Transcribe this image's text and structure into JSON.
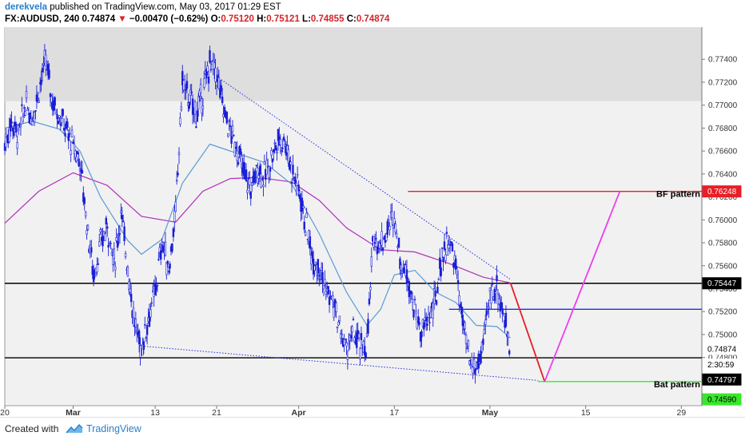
{
  "header": {
    "author": "derekvela",
    "published_text": "published on TradingView.com, May 03, 2017 01:29 EST",
    "symbol": "FX:AUDUSD, 240",
    "last": "0.74874",
    "change": "−0.00470 (−0.62%)",
    "o_label": "O:",
    "o_value": "0.75120",
    "h_label": "H:",
    "h_value": "0.75121",
    "l_label": "L:",
    "l_value": "0.74855",
    "c_label": "C:",
    "c_value": "0.74874"
  },
  "footer": {
    "created_with": "Created with",
    "brand": "TradingView"
  },
  "colors": {
    "candle": "#1a1fd6",
    "ma_fast": "#5b9bd5",
    "ma_slow": "#b02fb8",
    "red": "#e81e26",
    "magenta": "#ee3dee",
    "green": "#39e62e",
    "blue_line": "#1f2de0",
    "supply_zone": "#dedede"
  },
  "chart_data": {
    "type": "candlestick",
    "xlim": [
      0,
      102
    ],
    "ylim": [
      0.7438,
      0.7768
    ],
    "x_ticks": [
      {
        "x": 0,
        "label": "20"
      },
      {
        "x": 10,
        "label": "Mar"
      },
      {
        "x": 22,
        "label": "13"
      },
      {
        "x": 31,
        "label": "21"
      },
      {
        "x": 43,
        "label": "Apr"
      },
      {
        "x": 57,
        "label": "17"
      },
      {
        "x": 71,
        "label": "May"
      },
      {
        "x": 85,
        "label": "15"
      },
      {
        "x": 99,
        "label": "29"
      }
    ],
    "y_ticks": [
      "0.74600",
      "0.74800",
      "0.75000",
      "0.75200",
      "0.75400",
      "0.75600",
      "0.75800",
      "0.76000",
      "0.76200",
      "0.76400",
      "0.76600",
      "0.76800",
      "0.77000",
      "0.77200",
      "0.77400"
    ],
    "axis_labels": [
      {
        "text": "0.76248",
        "y": 0.76248,
        "bg": "#e81e26",
        "fg": "#ffffff"
      },
      {
        "text": "0.75447",
        "y": 0.75447,
        "bg": "#000000",
        "fg": "#ffffff"
      },
      {
        "text": "0.74874",
        "y": 0.74874,
        "bg": "#ffffff",
        "fg": "#000000"
      },
      {
        "text": "2:30:59",
        "y": 0.74738,
        "bg": "#ffffff",
        "fg": "#000000"
      },
      {
        "text": "0.74797",
        "y": 0.74608,
        "bg": "#000000",
        "fg": "#ffffff"
      },
      {
        "text": "0.74590",
        "y": 0.74435,
        "bg": "#39e62e",
        "fg": "#000000"
      }
    ],
    "supply_zone": [
      0.77035,
      0.7768
    ],
    "candles": [
      [
        0,
        0.7666
      ],
      [
        1,
        0.7686
      ],
      [
        2,
        0.7673
      ],
      [
        3,
        0.7701
      ],
      [
        4,
        0.7689
      ],
      [
        5,
        0.7715
      ],
      [
        6,
        0.7738
      ],
      [
        7,
        0.7703
      ],
      [
        8,
        0.7692
      ],
      [
        9,
        0.7678
      ],
      [
        10,
        0.7664
      ],
      [
        11,
        0.7652
      ],
      [
        12,
        0.7598
      ],
      [
        13,
        0.7552
      ],
      [
        14,
        0.7578
      ],
      [
        15,
        0.7595
      ],
      [
        16,
        0.7562
      ],
      [
        17,
        0.7606
      ],
      [
        18,
        0.7559
      ],
      [
        19,
        0.7508
      ],
      [
        20,
        0.7488
      ],
      [
        21,
        0.7515
      ],
      [
        22,
        0.7536
      ],
      [
        23,
        0.7581
      ],
      [
        24,
        0.7557
      ],
      [
        25,
        0.7606
      ],
      [
        26,
        0.7721
      ],
      [
        27,
        0.7705
      ],
      [
        28,
        0.7692
      ],
      [
        29,
        0.771
      ],
      [
        30,
        0.7737
      ],
      [
        31,
        0.7726
      ],
      [
        32,
        0.7697
      ],
      [
        33,
        0.7677
      ],
      [
        34,
        0.7662
      ],
      [
        35,
        0.764
      ],
      [
        36,
        0.7627
      ],
      [
        37,
        0.7646
      ],
      [
        38,
        0.7637
      ],
      [
        39,
        0.7654
      ],
      [
        40,
        0.7669
      ],
      [
        41,
        0.767
      ],
      [
        42,
        0.7643
      ],
      [
        43,
        0.7629
      ],
      [
        44,
        0.7597
      ],
      [
        45,
        0.7568
      ],
      [
        46,
        0.7561
      ],
      [
        47,
        0.7538
      ],
      [
        48,
        0.7528
      ],
      [
        49,
        0.7505
      ],
      [
        50,
        0.7486
      ],
      [
        51,
        0.7502
      ],
      [
        52,
        0.7488
      ],
      [
        53,
        0.7492
      ],
      [
        54,
        0.7588
      ],
      [
        55,
        0.7578
      ],
      [
        56,
        0.7592
      ],
      [
        57,
        0.7604
      ],
      [
        58,
        0.7561
      ],
      [
        59,
        0.7552
      ],
      [
        60,
        0.752
      ],
      [
        61,
        0.7501
      ],
      [
        62,
        0.7514
      ],
      [
        63,
        0.7528
      ],
      [
        64,
        0.757
      ],
      [
        65,
        0.7582
      ],
      [
        66,
        0.7559
      ],
      [
        67,
        0.751
      ],
      [
        68,
        0.7475
      ],
      [
        69,
        0.7469
      ],
      [
        70,
        0.749
      ],
      [
        71,
        0.7535
      ],
      [
        72,
        0.7542
      ],
      [
        73,
        0.7516
      ],
      [
        74,
        0.7487
      ]
    ],
    "ma_fast": [
      [
        0,
        0.768
      ],
      [
        4,
        0.7686
      ],
      [
        8,
        0.7679
      ],
      [
        11,
        0.766
      ],
      [
        14,
        0.762
      ],
      [
        18,
        0.7582
      ],
      [
        20,
        0.757
      ],
      [
        23,
        0.7583
      ],
      [
        26,
        0.7632
      ],
      [
        30,
        0.7666
      ],
      [
        34,
        0.7658
      ],
      [
        38,
        0.765
      ],
      [
        42,
        0.7631
      ],
      [
        46,
        0.7588
      ],
      [
        50,
        0.7537
      ],
      [
        53,
        0.7508
      ],
      [
        55,
        0.7522
      ],
      [
        57,
        0.7552
      ],
      [
        60,
        0.7556
      ],
      [
        63,
        0.7537
      ],
      [
        66,
        0.7528
      ],
      [
        69,
        0.7508
      ],
      [
        72,
        0.7507
      ],
      [
        74,
        0.7497
      ]
    ],
    "ma_slow": [
      [
        0,
        0.7597
      ],
      [
        5,
        0.7625
      ],
      [
        10,
        0.7641
      ],
      [
        15,
        0.763
      ],
      [
        20,
        0.7603
      ],
      [
        25,
        0.7598
      ],
      [
        29,
        0.7625
      ],
      [
        33,
        0.7636
      ],
      [
        37,
        0.7637
      ],
      [
        42,
        0.7633
      ],
      [
        46,
        0.7617
      ],
      [
        50,
        0.7593
      ],
      [
        55,
        0.7574
      ],
      [
        60,
        0.7572
      ],
      [
        65,
        0.7562
      ],
      [
        70,
        0.755
      ],
      [
        74,
        0.7545
      ]
    ],
    "trendlines": [
      {
        "kind": "dotted",
        "x1": 31,
        "y1": 0.7725,
        "x2": 74,
        "y2": 0.7548
      },
      {
        "kind": "dotted",
        "x1": 20,
        "y1": 0.749,
        "x2": 78,
        "y2": 0.746
      }
    ],
    "levels": [
      {
        "y": 0.75447,
        "x1": 0,
        "x2": 102,
        "color": "#000000"
      },
      {
        "y": 0.74797,
        "x1": 0,
        "x2": 102,
        "color": "#000000"
      },
      {
        "y": 0.7522,
        "x1": 65,
        "x2": 102,
        "color": "#1f2de0"
      },
      {
        "y": 0.76248,
        "x1": 59,
        "x2": 102,
        "color": "#e81e26"
      },
      {
        "y": 0.7459,
        "x1": 78,
        "x2": 102,
        "color": "#39e62e"
      }
    ],
    "pattern_legs": [
      {
        "x1": 74,
        "y1": 0.7545,
        "x2": 79,
        "y2": 0.7459,
        "color": "#e81e26"
      },
      {
        "x1": 79,
        "y1": 0.7459,
        "x2": 90,
        "y2": 0.76248,
        "color": "#ee3dee"
      }
    ],
    "annotations": [
      {
        "text": "BF pattern",
        "x": 102,
        "y": 0.762
      },
      {
        "text": "Bat pattern",
        "x": 102,
        "y": 0.7454
      }
    ]
  }
}
